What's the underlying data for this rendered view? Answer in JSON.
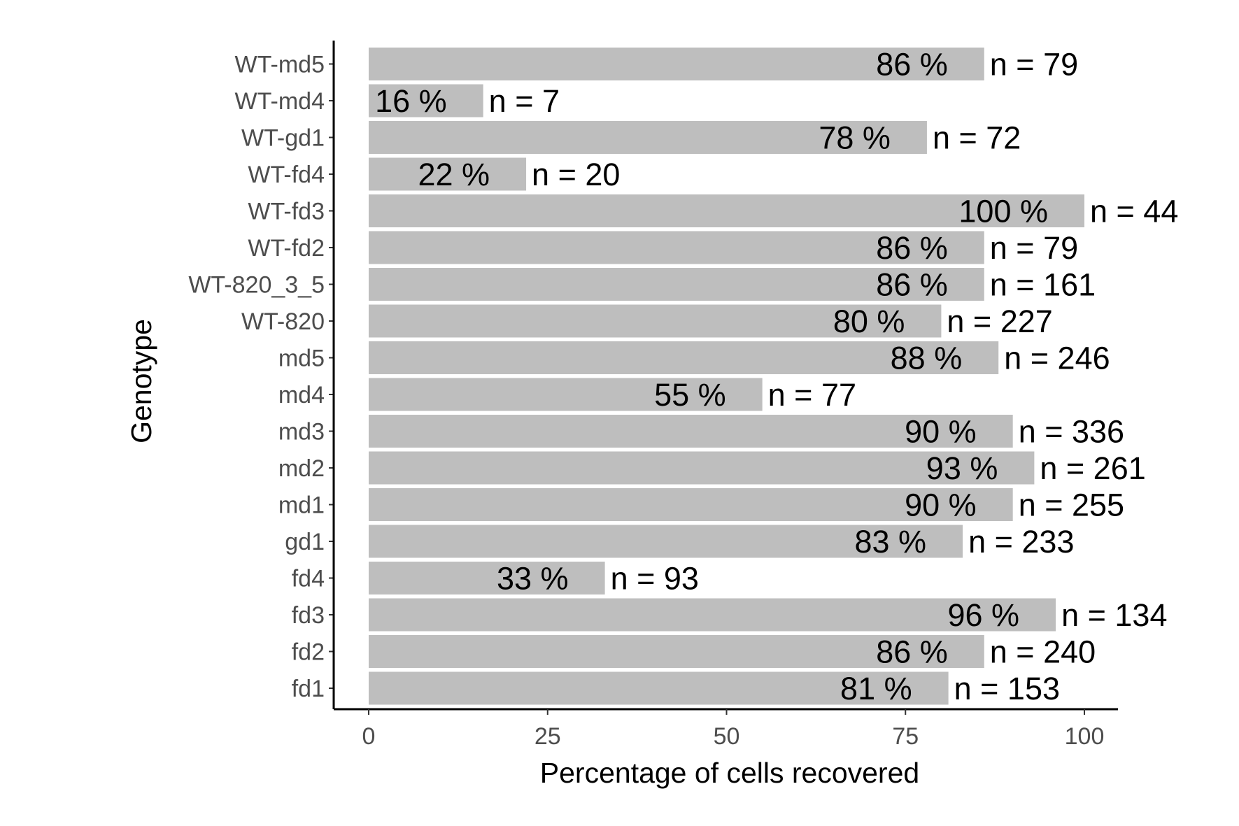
{
  "chart_data": {
    "type": "bar",
    "orientation": "horizontal",
    "xlabel": "Percentage of cells recovered",
    "ylabel": "Genotype",
    "xlim": [
      0,
      100
    ],
    "xticks": [
      0,
      25,
      50,
      75,
      100
    ],
    "grid": false,
    "bar_color": "#bebebe",
    "categories": [
      "WT-md5",
      "WT-md4",
      "WT-gd1",
      "WT-fd4",
      "WT-fd3",
      "WT-fd2",
      "WT-820_3_5",
      "WT-820",
      "md5",
      "md4",
      "md3",
      "md2",
      "md1",
      "gd1",
      "fd4",
      "fd3",
      "fd2",
      "fd1"
    ],
    "values": [
      86,
      16,
      78,
      22,
      100,
      86,
      86,
      80,
      88,
      55,
      90,
      93,
      90,
      83,
      33,
      96,
      86,
      81
    ],
    "value_labels": [
      "86 %",
      "16 %",
      "78 %",
      "22 %",
      "100 %",
      "86 %",
      "86 %",
      "80 %",
      "88 %",
      "55 %",
      "90 %",
      "93 %",
      "90 %",
      "83 %",
      "33 %",
      "96 %",
      "86 %",
      "81 %"
    ],
    "n_labels": [
      "n = 79",
      "n = 7",
      "n = 72",
      "n = 20",
      "n = 44",
      "n = 79",
      "n = 161",
      "n = 227",
      "n = 246",
      "n = 77",
      "n = 336",
      "n = 261",
      "n = 255",
      "n = 233",
      "n = 93",
      "n = 134",
      "n = 240",
      "n = 153"
    ]
  }
}
